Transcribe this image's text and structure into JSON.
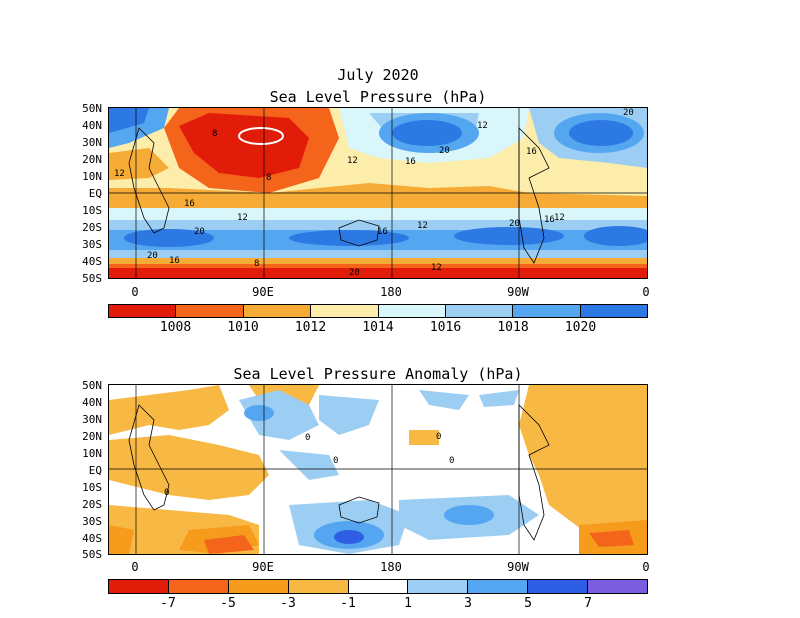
{
  "top_map": {
    "title_line1": "July 2020",
    "title_line2": "Sea Level Pressure (hPa)",
    "lat_labels": [
      "50N",
      "40N",
      "30N",
      "20N",
      "10N",
      "EQ",
      "10S",
      "20S",
      "30S",
      "40S",
      "50S"
    ],
    "lon_labels": [
      "0",
      "90E",
      "180",
      "90W",
      "0"
    ],
    "colorbar": {
      "labels": [
        "1008",
        "1010",
        "1012",
        "1014",
        "1016",
        "1018",
        "1020"
      ],
      "colors": [
        "#e11c09",
        "#f4641b",
        "#f6ab37",
        "#fdedaa",
        "#d9f6fa",
        "#9ccef3",
        "#54a6f1",
        "#2d79e4"
      ]
    },
    "contour_labels": [
      "8",
      "8",
      "8",
      "12",
      "12",
      "12",
      "12",
      "12",
      "12",
      "16",
      "16",
      "16",
      "16",
      "16",
      "16",
      "20",
      "20",
      "20",
      "20",
      "20",
      "12",
      "20"
    ],
    "map_colors": {
      "deep_low": "#e11c09",
      "low": "#f4641b",
      "mid_low": "#f6ab37",
      "near": "#fdedaa",
      "near_high": "#d9f6fa",
      "high": "#9ccef3",
      "higher": "#54a6f1",
      "highest": "#2d79e4"
    }
  },
  "bottom_map": {
    "title": "Sea Level Pressure Anomaly (hPa)",
    "lat_labels": [
      "50N",
      "40N",
      "30N",
      "20N",
      "10N",
      "EQ",
      "10S",
      "20S",
      "30S",
      "40S",
      "50S"
    ],
    "lon_labels": [
      "0",
      "90E",
      "180",
      "90W",
      "0"
    ],
    "colorbar": {
      "labels": [
        "-7",
        "-5",
        "-3",
        "-1",
        "1",
        "3",
        "5",
        "7"
      ],
      "colors": [
        "#e11c09",
        "#f4641b",
        "#f69b1c",
        "#f8b844",
        "#ffffff",
        "#9ccef3",
        "#54a6f1",
        "#2d5ee4",
        "#7b5de0"
      ]
    },
    "contour_labels": [
      "0",
      "0",
      "0",
      "0",
      "0"
    ]
  }
}
